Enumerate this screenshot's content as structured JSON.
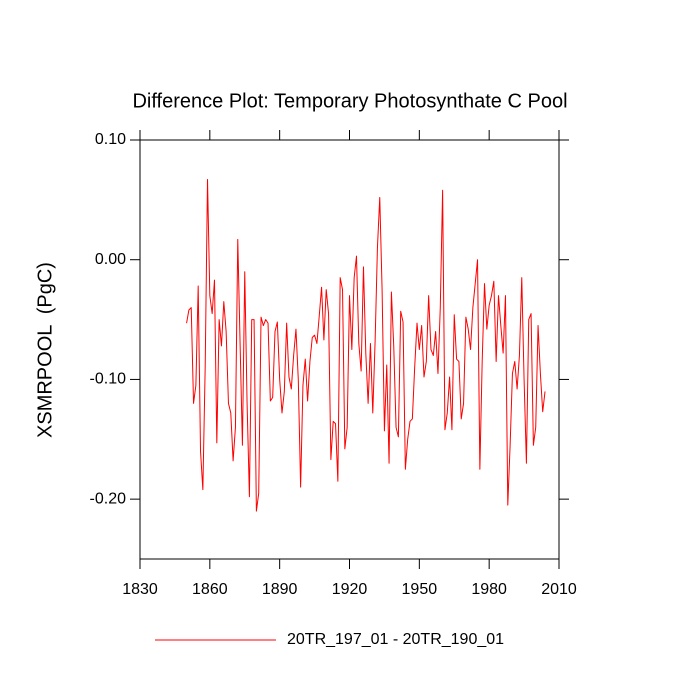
{
  "chart_data": {
    "type": "line",
    "title": "Difference Plot: Temporary Photosynthate C Pool",
    "y_label": "XSMRPOOL  (PgC)",
    "x": [
      1850,
      1851,
      1852,
      1853,
      1854,
      1855,
      1856,
      1857,
      1858,
      1859,
      1860,
      1861,
      1862,
      1863,
      1864,
      1865,
      1866,
      1867,
      1868,
      1869,
      1870,
      1871,
      1872,
      1873,
      1874,
      1875,
      1876,
      1877,
      1878,
      1879,
      1880,
      1881,
      1882,
      1883,
      1884,
      1885,
      1886,
      1887,
      1888,
      1889,
      1890,
      1891,
      1892,
      1893,
      1894,
      1895,
      1896,
      1897,
      1898,
      1899,
      1900,
      1901,
      1902,
      1903,
      1904,
      1905,
      1906,
      1907,
      1908,
      1909,
      1910,
      1911,
      1912,
      1913,
      1914,
      1915,
      1916,
      1917,
      1918,
      1919,
      1920,
      1921,
      1922,
      1923,
      1924,
      1925,
      1926,
      1927,
      1928,
      1929,
      1930,
      1931,
      1932,
      1933,
      1934,
      1935,
      1936,
      1937,
      1938,
      1939,
      1940,
      1941,
      1942,
      1943,
      1944,
      1945,
      1946,
      1947,
      1948,
      1949,
      1950,
      1951,
      1952,
      1953,
      1954,
      1955,
      1956,
      1957,
      1958,
      1959,
      1960,
      1961,
      1962,
      1963,
      1964,
      1965,
      1966,
      1967,
      1968,
      1969,
      1970,
      1971,
      1972,
      1973,
      1974,
      1975,
      1976,
      1977,
      1978,
      1979,
      1980,
      1981,
      1982,
      1983,
      1984,
      1985,
      1986,
      1987,
      1988,
      1989,
      1990,
      1991,
      1992,
      1993,
      1994,
      1995,
      1996,
      1997,
      1998,
      1999,
      2000,
      2001,
      2002,
      2003,
      2004
    ],
    "series": [
      {
        "name": "20TR_197_01 - 20TR_190_01",
        "color": "#ff0000",
        "values": [
          -0.053,
          -0.042,
          -0.04,
          -0.12,
          -0.105,
          -0.022,
          -0.16,
          -0.192,
          -0.09,
          0.067,
          -0.03,
          -0.045,
          -0.017,
          -0.153,
          -0.05,
          -0.072,
          -0.035,
          -0.06,
          -0.12,
          -0.128,
          -0.168,
          -0.14,
          0.017,
          -0.07,
          -0.155,
          -0.01,
          -0.12,
          -0.198,
          -0.05,
          -0.05,
          -0.21,
          -0.195,
          -0.048,
          -0.055,
          -0.05,
          -0.053,
          -0.118,
          -0.115,
          -0.06,
          -0.052,
          -0.1,
          -0.128,
          -0.11,
          -0.053,
          -0.098,
          -0.108,
          -0.08,
          -0.058,
          -0.1,
          -0.19,
          -0.105,
          -0.083,
          -0.118,
          -0.085,
          -0.065,
          -0.063,
          -0.07,
          -0.047,
          -0.023,
          -0.067,
          -0.025,
          -0.045,
          -0.167,
          -0.135,
          -0.137,
          -0.185,
          -0.015,
          -0.025,
          -0.158,
          -0.14,
          -0.03,
          -0.075,
          -0.015,
          0.003,
          -0.07,
          -0.093,
          -0.006,
          -0.078,
          -0.12,
          -0.07,
          -0.128,
          -0.068,
          0.01,
          0.052,
          -0.025,
          -0.143,
          -0.088,
          -0.17,
          -0.027,
          -0.072,
          -0.14,
          -0.148,
          -0.043,
          -0.052,
          -0.175,
          -0.15,
          -0.135,
          -0.133,
          -0.09,
          -0.053,
          -0.075,
          -0.055,
          -0.098,
          -0.085,
          -0.03,
          -0.075,
          -0.08,
          -0.06,
          -0.095,
          -0.04,
          0.058,
          -0.142,
          -0.128,
          -0.098,
          -0.142,
          -0.046,
          -0.083,
          -0.085,
          -0.133,
          -0.12,
          -0.048,
          -0.058,
          -0.075,
          -0.04,
          -0.02,
          0.0,
          -0.175,
          -0.085,
          -0.02,
          -0.058,
          -0.038,
          -0.03,
          -0.018,
          -0.085,
          -0.03,
          -0.055,
          -0.078,
          -0.03,
          -0.205,
          -0.155,
          -0.095,
          -0.085,
          -0.108,
          -0.08,
          -0.015,
          -0.1,
          -0.17,
          -0.05,
          -0.045,
          -0.155,
          -0.14,
          -0.055,
          -0.095,
          -0.127,
          -0.11
        ]
      }
    ],
    "xlim": [
      1830,
      2010
    ],
    "xticks": [
      1830,
      1860,
      1890,
      1920,
      1950,
      1980,
      2010
    ],
    "ylim": [
      -0.25,
      0.1
    ],
    "yticks": [
      {
        "value": -0.2,
        "label": "-0.20"
      },
      {
        "value": -0.1,
        "label": "-0.10"
      },
      {
        "value": 0,
        "label": "0.00"
      },
      {
        "value": 0.1,
        "label": "0.10"
      }
    ],
    "legend": "bottom"
  }
}
